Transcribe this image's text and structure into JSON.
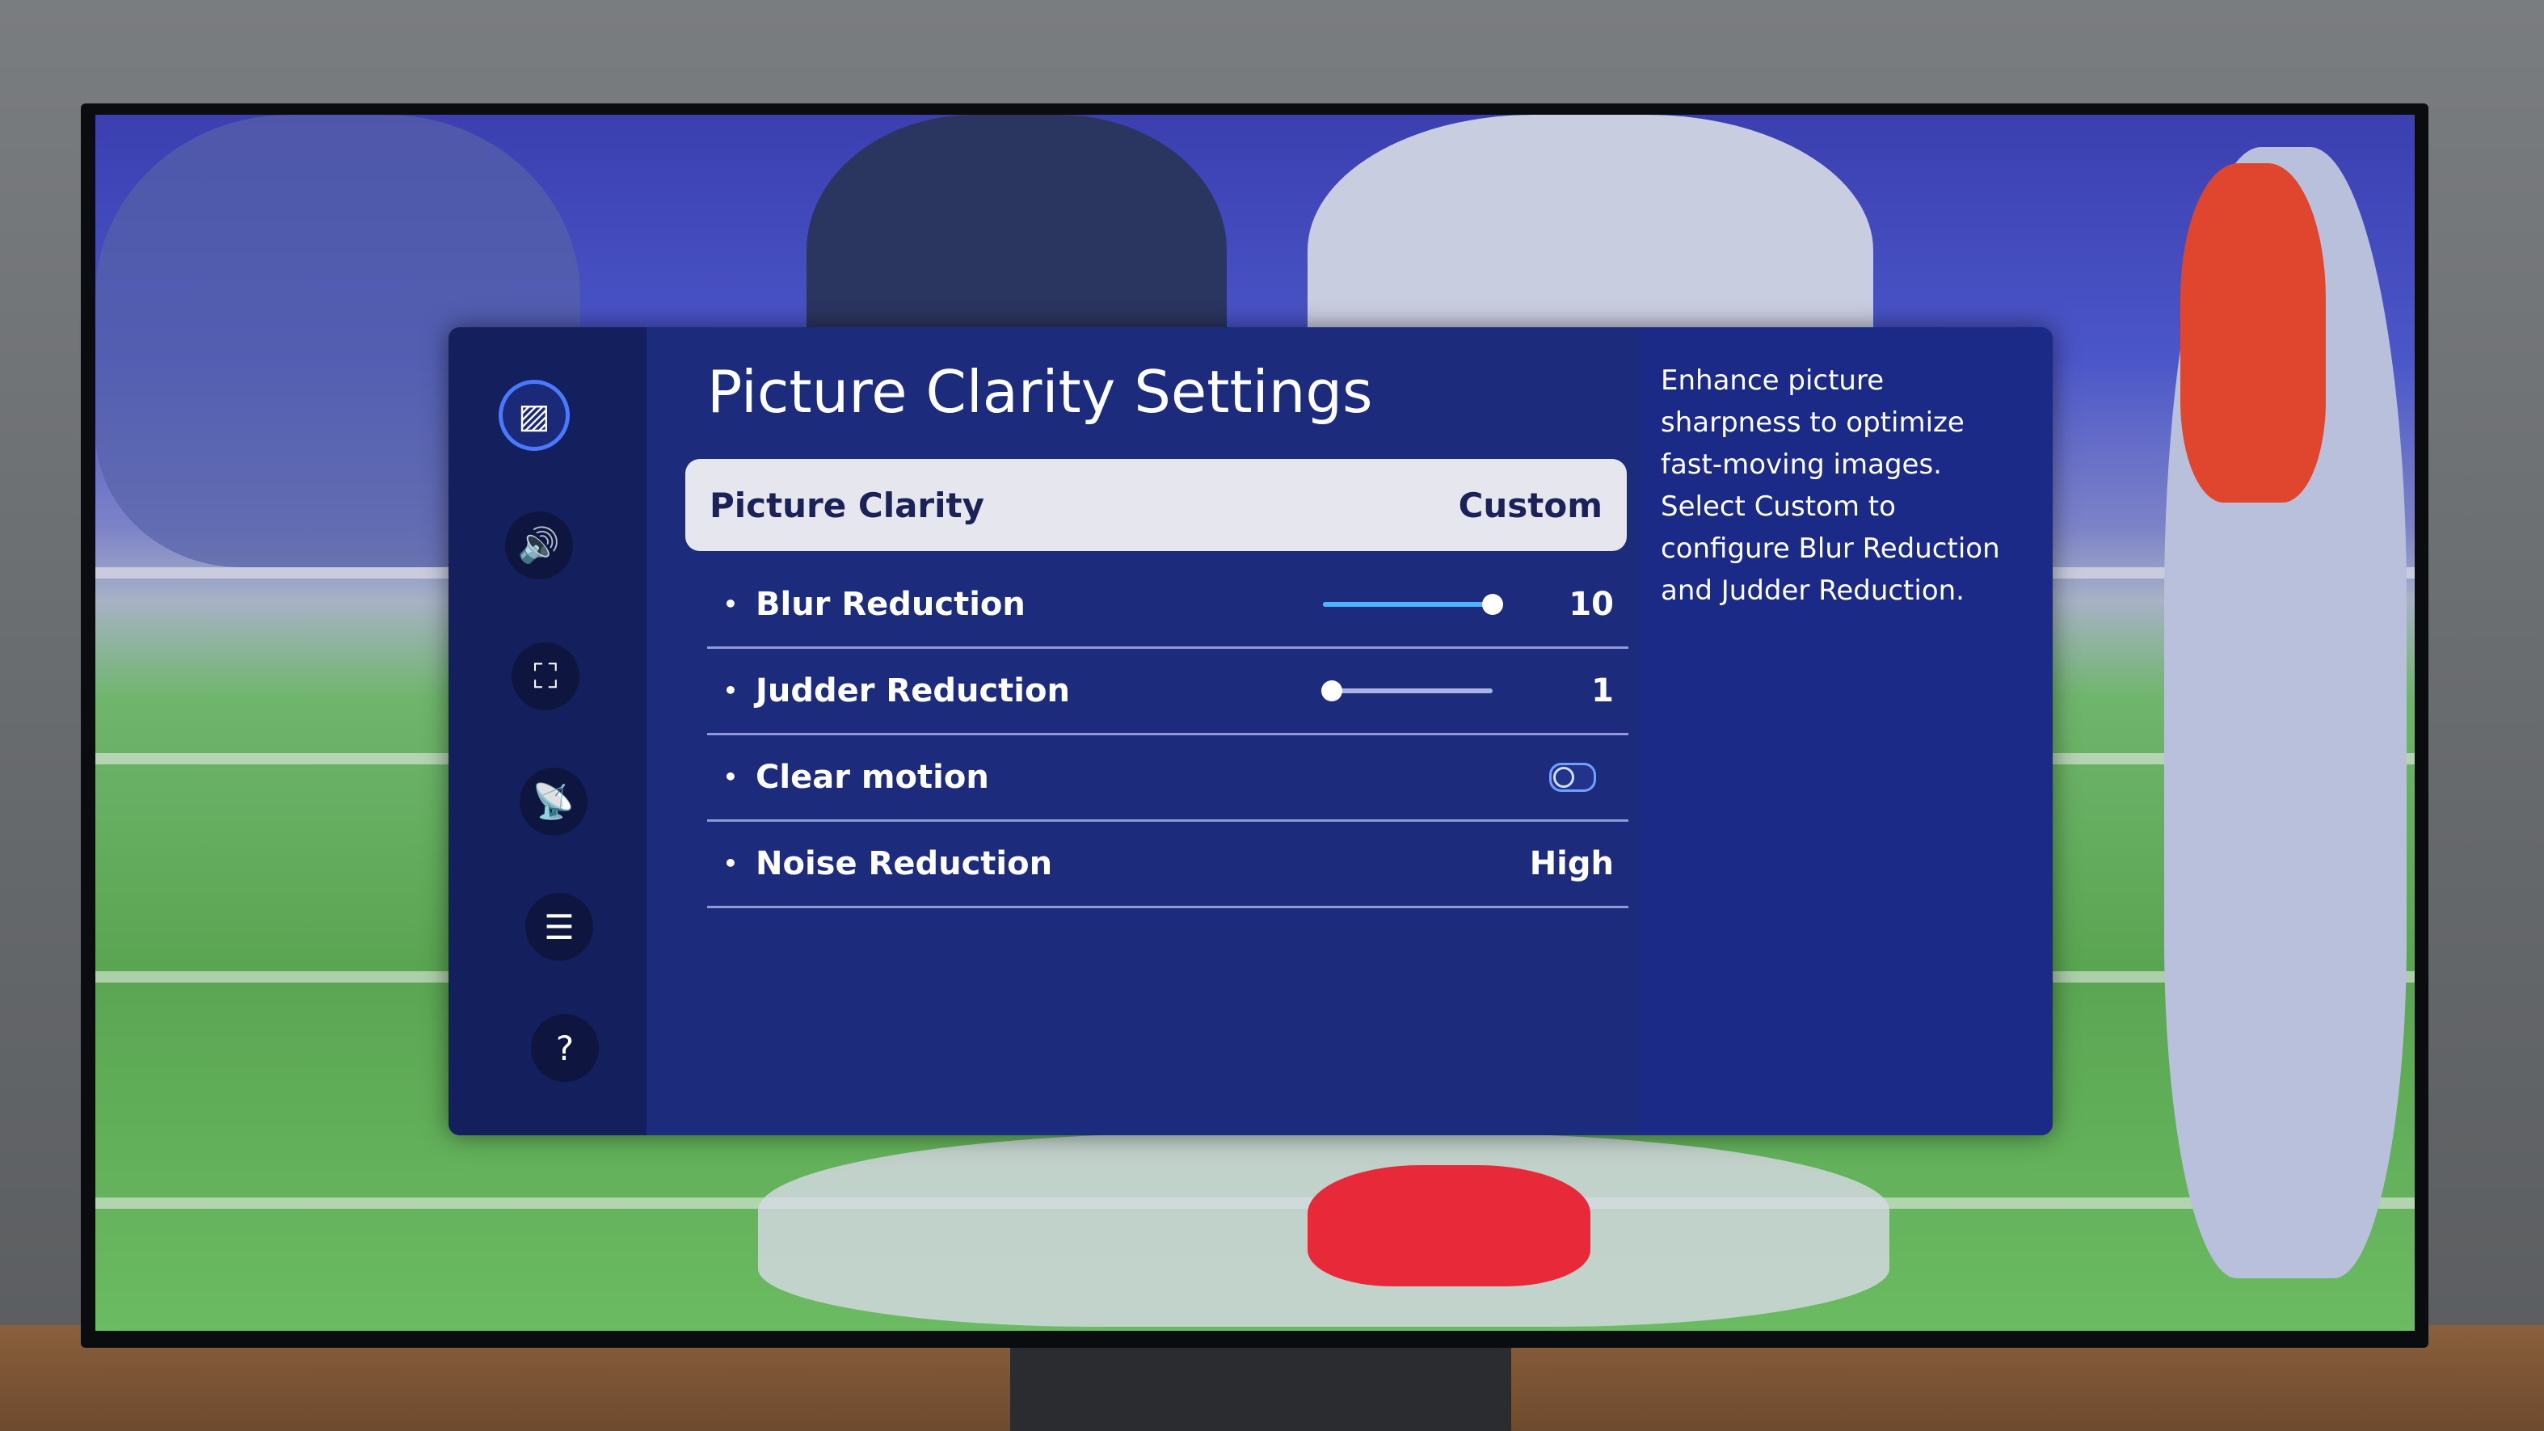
{
  "menu": {
    "title": "Picture Clarity Settings",
    "sidebar": [
      {
        "icon": "picture-icon",
        "glyph": "▨",
        "active": true
      },
      {
        "icon": "sound-icon",
        "glyph": "🔊",
        "active": false
      },
      {
        "icon": "connection-icon",
        "glyph": "⛶",
        "active": false
      },
      {
        "icon": "broadcasting-icon",
        "glyph": "📡",
        "active": false
      },
      {
        "icon": "accessibility-icon",
        "glyph": "☰",
        "active": false
      },
      {
        "icon": "support-icon",
        "glyph": "?",
        "active": false
      }
    ],
    "selected": {
      "label": "Picture Clarity",
      "value": "Custom"
    },
    "items": [
      {
        "label": "Blur Reduction",
        "type": "slider",
        "value": "10",
        "level": 1.0
      },
      {
        "label": "Judder Reduction",
        "type": "slider",
        "value": "1",
        "level": 0.05
      },
      {
        "label": "Clear motion",
        "type": "toggle",
        "on": false
      },
      {
        "label": "Noise Reduction",
        "type": "option",
        "value": "High"
      }
    ],
    "bullet": "•",
    "description": "Enhance picture sharpness to optimize fast-moving images. Select Custom to configure Blur Reduction and Judder Reduction."
  },
  "colors": {
    "panel": "#1b2a78",
    "accent": "#4fb3ff",
    "selected_bg": "#e6e7ee"
  }
}
